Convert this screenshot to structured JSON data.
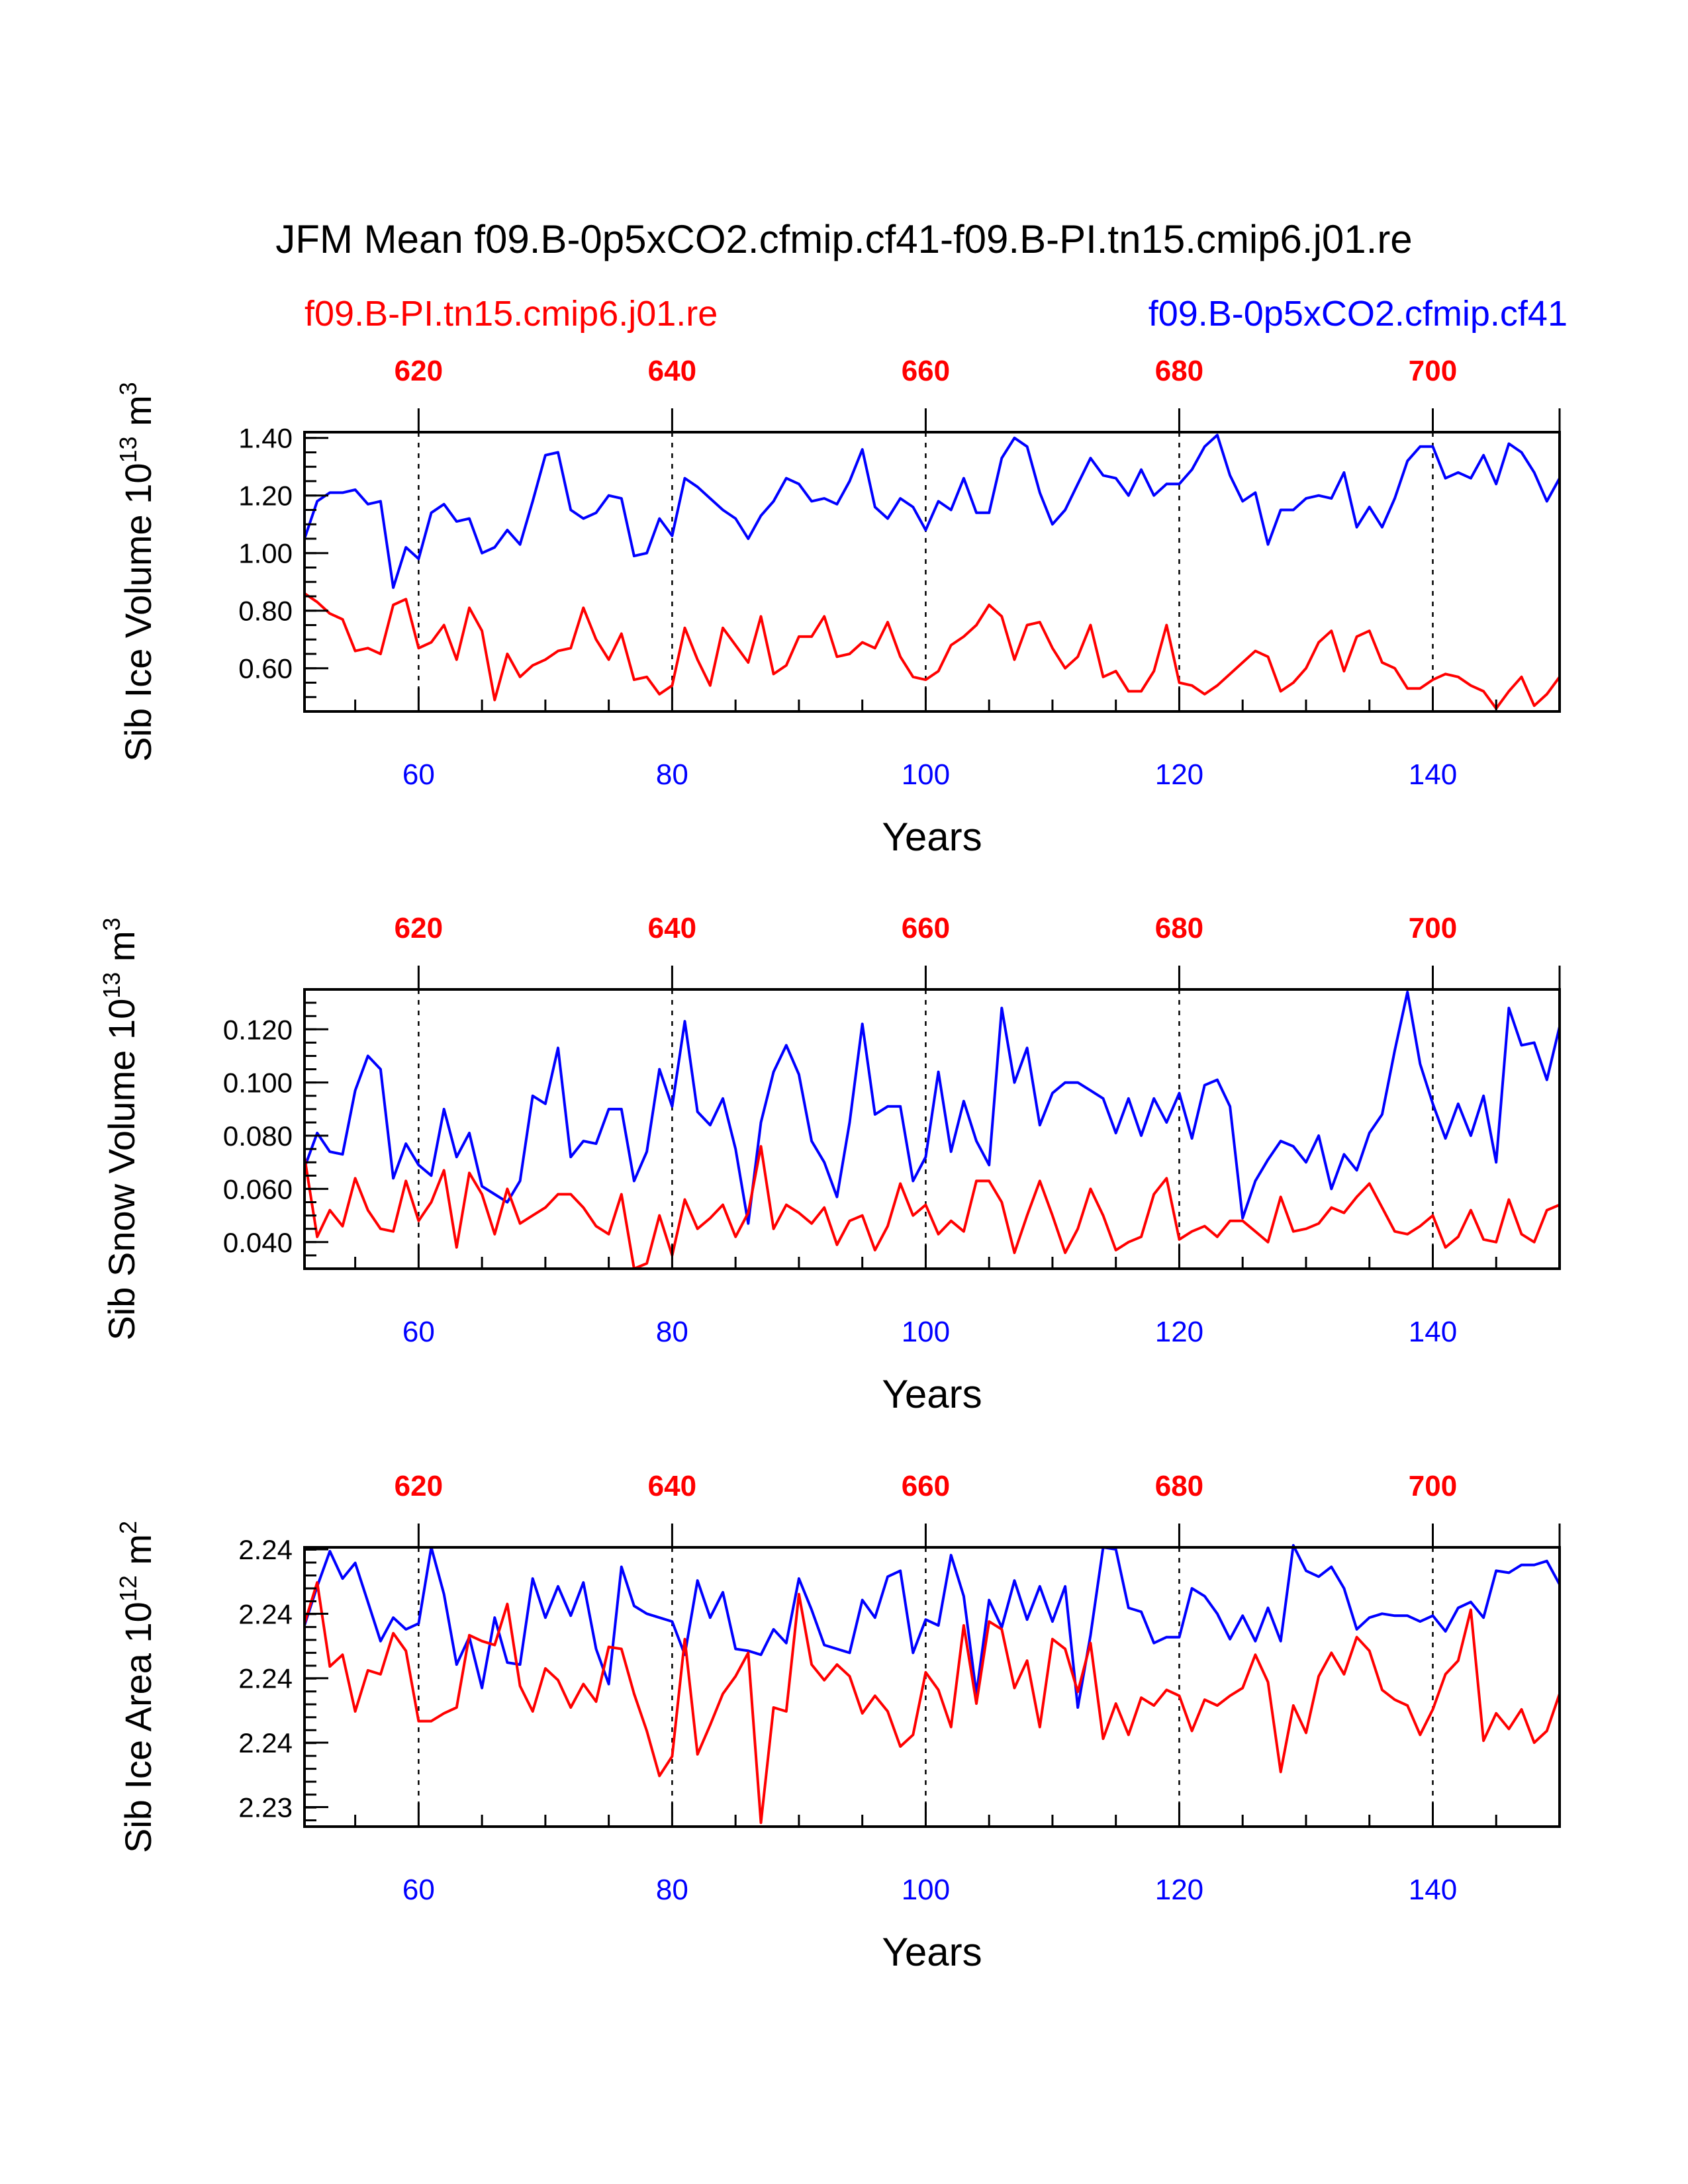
{
  "title": "JFM Mean f09.B-0p5xCO2.cfmip.cf41-f09.B-PI.tn15.cmip6.j01.re",
  "legend": {
    "red": "f09.B-PI.tn15.cmip6.j01.re",
    "blue": "f09.B-0p5xCO2.cfmip.cf41"
  },
  "colors": {
    "blue": "#0000ff",
    "red": "#ff0000",
    "axis": "#000000"
  },
  "chart_data": [
    {
      "type": "line",
      "title": "",
      "ylabel_main": "Sib Ice Volume 10",
      "ylabel_exp": "13",
      "ylabel_unit": " m",
      "ylabel_unit_exp": "3",
      "xlabel": "Years",
      "xlim": [
        51,
        150
      ],
      "ylim": [
        0.45,
        1.42
      ],
      "yticks": [
        0.6,
        0.8,
        1.0,
        1.2,
        1.4
      ],
      "ytick_labels": [
        "0.60",
        "0.80",
        "1.00",
        "1.20",
        "1.40"
      ],
      "yminor": 0.05,
      "xticks": [
        60,
        80,
        100,
        120,
        140
      ],
      "xtick_labels": [
        "60",
        "80",
        "100",
        "120",
        "140"
      ],
      "top_xticks": [
        60,
        80,
        100,
        120,
        140,
        150
      ],
      "top_xtick_labels": [
        "620",
        "640",
        "660",
        "680",
        "700"
      ],
      "vlines": [
        60,
        80,
        100,
        120,
        140
      ],
      "x_start": 51,
      "series": [
        {
          "name": "f09.B-0p5xCO2.cfmip.cf41",
          "color": "blue",
          "values": [
            1.05,
            1.18,
            1.21,
            1.21,
            1.22,
            1.17,
            1.18,
            0.88,
            1.02,
            0.98,
            1.14,
            1.17,
            1.11,
            1.12,
            1.0,
            1.02,
            1.08,
            1.03,
            1.18,
            1.34,
            1.35,
            1.15,
            1.12,
            1.14,
            1.2,
            1.19,
            0.99,
            1.0,
            1.12,
            1.06,
            1.26,
            1.23,
            1.19,
            1.15,
            1.12,
            1.05,
            1.13,
            1.18,
            1.26,
            1.24,
            1.18,
            1.19,
            1.17,
            1.25,
            1.36,
            1.16,
            1.12,
            1.19,
            1.16,
            1.08,
            1.18,
            1.15,
            1.26,
            1.14,
            1.14,
            1.33,
            1.4,
            1.37,
            1.21,
            1.1,
            1.15,
            1.24,
            1.33,
            1.27,
            1.26,
            1.2,
            1.29,
            1.2,
            1.24,
            1.24,
            1.29,
            1.37,
            1.41,
            1.27,
            1.18,
            1.21,
            1.03,
            1.15,
            1.15,
            1.19,
            1.2,
            1.19,
            1.28,
            1.09,
            1.16,
            1.09,
            1.19,
            1.32,
            1.37,
            1.37,
            1.26,
            1.28,
            1.26,
            1.34,
            1.24,
            1.38,
            1.35,
            1.28,
            1.18,
            1.26
          ]
        },
        {
          "name": "f09.B-PI.tn15.cmip6.j01.re",
          "color": "red",
          "values": [
            0.86,
            0.83,
            0.79,
            0.77,
            0.66,
            0.67,
            0.65,
            0.82,
            0.84,
            0.67,
            0.69,
            0.75,
            0.63,
            0.81,
            0.73,
            0.49,
            0.65,
            0.57,
            0.61,
            0.63,
            0.66,
            0.67,
            0.81,
            0.7,
            0.63,
            0.72,
            0.56,
            0.57,
            0.51,
            0.54,
            0.74,
            0.63,
            0.54,
            0.74,
            0.68,
            0.62,
            0.78,
            0.58,
            0.61,
            0.71,
            0.71,
            0.78,
            0.64,
            0.65,
            0.69,
            0.67,
            0.76,
            0.64,
            0.57,
            0.56,
            0.59,
            0.68,
            0.71,
            0.75,
            0.82,
            0.78,
            0.63,
            0.75,
            0.76,
            0.67,
            0.6,
            0.64,
            0.75,
            0.57,
            0.59,
            0.52,
            0.52,
            0.59,
            0.75,
            0.55,
            0.54,
            0.51,
            0.54,
            0.58,
            0.62,
            0.66,
            0.64,
            0.52,
            0.55,
            0.6,
            0.69,
            0.73,
            0.59,
            0.71,
            0.73,
            0.62,
            0.6,
            0.53,
            0.53,
            0.56,
            0.58,
            0.57,
            0.54,
            0.52,
            0.46,
            0.52,
            0.57,
            0.47,
            0.51,
            0.57
          ]
        }
      ]
    },
    {
      "type": "line",
      "title": "",
      "ylabel_main": "Sib Snow Volume 10",
      "ylabel_exp": "13",
      "ylabel_unit": " m",
      "ylabel_unit_exp": "3",
      "xlabel": "Years",
      "xlim": [
        51,
        150
      ],
      "ylim": [
        0.03,
        0.135
      ],
      "yticks": [
        0.04,
        0.06,
        0.08,
        0.1,
        0.12
      ],
      "ytick_labels": [
        "0.040",
        "0.060",
        "0.080",
        "0.100",
        "0.120"
      ],
      "yminor": 0.005,
      "xticks": [
        60,
        80,
        100,
        120,
        140
      ],
      "xtick_labels": [
        "60",
        "80",
        "100",
        "120",
        "140"
      ],
      "top_xticks": [
        60,
        80,
        100,
        120,
        140,
        150
      ],
      "top_xtick_labels": [
        "620",
        "640",
        "660",
        "680",
        "700"
      ],
      "vlines": [
        60,
        80,
        100,
        120,
        140
      ],
      "x_start": 51,
      "series": [
        {
          "name": "f09.B-0p5xCO2.cfmip.cf41",
          "color": "blue",
          "values": [
            0.068,
            0.081,
            0.074,
            0.073,
            0.097,
            0.11,
            0.105,
            0.064,
            0.077,
            0.069,
            0.065,
            0.09,
            0.072,
            0.081,
            0.061,
            0.058,
            0.055,
            0.063,
            0.095,
            0.092,
            0.113,
            0.072,
            0.078,
            0.077,
            0.09,
            0.09,
            0.063,
            0.074,
            0.105,
            0.091,
            0.123,
            0.089,
            0.084,
            0.094,
            0.075,
            0.047,
            0.085,
            0.104,
            0.114,
            0.103,
            0.078,
            0.07,
            0.057,
            0.085,
            0.122,
            0.088,
            0.091,
            0.091,
            0.063,
            0.072,
            0.104,
            0.074,
            0.093,
            0.078,
            0.069,
            0.128,
            0.1,
            0.113,
            0.084,
            0.096,
            0.1,
            0.1,
            0.097,
            0.094,
            0.081,
            0.094,
            0.08,
            0.094,
            0.085,
            0.096,
            0.079,
            0.099,
            0.101,
            0.091,
            0.049,
            0.063,
            0.071,
            0.078,
            0.076,
            0.07,
            0.08,
            0.06,
            0.073,
            0.067,
            0.081,
            0.088,
            0.112,
            0.134,
            0.107,
            0.092,
            0.079,
            0.092,
            0.08,
            0.095,
            0.07,
            0.128,
            0.114,
            0.115,
            0.101,
            0.121
          ]
        },
        {
          "name": "f09.B-PI.tn15.cmip6.j01.re",
          "color": "red",
          "values": [
            0.072,
            0.042,
            0.052,
            0.046,
            0.064,
            0.052,
            0.045,
            0.044,
            0.063,
            0.048,
            0.055,
            0.067,
            0.038,
            0.066,
            0.058,
            0.043,
            0.06,
            0.047,
            0.05,
            0.053,
            0.058,
            0.058,
            0.053,
            0.046,
            0.043,
            0.058,
            0.03,
            0.032,
            0.05,
            0.035,
            0.056,
            0.045,
            0.049,
            0.054,
            0.042,
            0.051,
            0.076,
            0.045,
            0.054,
            0.051,
            0.047,
            0.053,
            0.039,
            0.048,
            0.05,
            0.037,
            0.046,
            0.062,
            0.05,
            0.054,
            0.043,
            0.048,
            0.044,
            0.063,
            0.063,
            0.055,
            0.036,
            0.05,
            0.063,
            0.05,
            0.036,
            0.045,
            0.06,
            0.05,
            0.037,
            0.04,
            0.042,
            0.058,
            0.064,
            0.041,
            0.044,
            0.046,
            0.042,
            0.048,
            0.048,
            0.044,
            0.04,
            0.057,
            0.044,
            0.045,
            0.047,
            0.053,
            0.051,
            0.057,
            0.062,
            0.053,
            0.044,
            0.043,
            0.046,
            0.05,
            0.038,
            0.042,
            0.052,
            0.041,
            0.04,
            0.056,
            0.043,
            0.04,
            0.052,
            0.054
          ]
        }
      ]
    },
    {
      "type": "line",
      "title": "",
      "ylabel_main": "Sib Ice Area 10",
      "ylabel_exp": "12",
      "ylabel_unit": " m",
      "ylabel_unit_exp": "2",
      "xlabel": "Years",
      "xlim": [
        51,
        150
      ],
      "ylim": [
        2.2285,
        2.2428
      ],
      "yticks": [
        2.2295,
        2.2328,
        2.2361,
        2.2394,
        2.2427
      ],
      "ytick_labels": [
        "2.23",
        "2.24",
        "2.24",
        "2.24",
        "2.24"
      ],
      "yminor": 0.00066,
      "xticks": [
        60,
        80,
        100,
        120,
        140
      ],
      "xtick_labels": [
        "60",
        "80",
        "100",
        "120",
        "140"
      ],
      "top_xticks": [
        60,
        80,
        100,
        120,
        140,
        150
      ],
      "top_xtick_labels": [
        "620",
        "640",
        "660",
        "680",
        "700"
      ],
      "vlines": [
        60,
        80,
        100,
        120,
        140
      ],
      "x_start": 51,
      "series": [
        {
          "name": "f09.B-0p5xCO2.cfmip.cf41",
          "color": "blue",
          "values": [
            2.2388,
            2.2408,
            2.2426,
            2.2412,
            2.242,
            2.24,
            2.238,
            2.2392,
            2.2386,
            2.2389,
            2.2428,
            2.2404,
            2.2368,
            2.2382,
            2.2356,
            2.2392,
            2.2369,
            2.2368,
            2.2412,
            2.2392,
            2.2408,
            2.2393,
            2.241,
            2.2376,
            2.2358,
            2.2418,
            2.2398,
            2.2394,
            2.2392,
            2.239,
            2.2373,
            2.2411,
            2.2392,
            2.2405,
            2.2376,
            2.2375,
            2.2373,
            2.2386,
            2.2379,
            2.2412,
            2.2396,
            2.2378,
            2.2376,
            2.2374,
            2.2401,
            2.2392,
            2.2413,
            2.2416,
            2.2374,
            2.2391,
            2.2388,
            2.2424,
            2.2403,
            2.2353,
            2.2401,
            2.2387,
            2.2411,
            2.2391,
            2.2408,
            2.239,
            2.2408,
            2.2346,
            2.2383,
            2.2428,
            2.2427,
            2.2397,
            2.2395,
            2.2379,
            2.2382,
            2.2382,
            2.2407,
            2.2403,
            2.2394,
            2.2381,
            2.2393,
            2.238,
            2.2397,
            2.238,
            2.2429,
            2.2416,
            2.2413,
            2.2418,
            2.2407,
            2.2386,
            2.2392,
            2.2394,
            2.2393,
            2.2393,
            2.239,
            2.2393,
            2.2385,
            2.2397,
            2.24,
            2.2392,
            2.2416,
            2.2415,
            2.2419,
            2.2419,
            2.2421,
            2.2409
          ]
        },
        {
          "name": "f09.B-PI.tn15.cmip6.j01.re",
          "color": "red",
          "values": [
            2.2389,
            2.241,
            2.2367,
            2.2373,
            2.2344,
            2.2365,
            2.2363,
            2.2384,
            2.2375,
            2.2339,
            2.2339,
            2.2343,
            2.2346,
            2.2383,
            2.238,
            2.2378,
            2.2399,
            2.2357,
            2.2344,
            2.2366,
            2.236,
            2.2346,
            2.2358,
            2.2349,
            2.2377,
            2.2376,
            2.2353,
            2.2334,
            2.2311,
            2.2321,
            2.2381,
            2.2322,
            2.2337,
            2.2353,
            2.2362,
            2.2374,
            2.2287,
            2.2346,
            2.2344,
            2.2404,
            2.2368,
            2.236,
            2.2368,
            2.2362,
            2.2343,
            2.2352,
            2.2344,
            2.2326,
            2.2332,
            2.2364,
            2.2355,
            2.2336,
            2.2388,
            2.2348,
            2.239,
            2.2386,
            2.2356,
            2.237,
            2.2336,
            2.2381,
            2.2376,
            2.2354,
            2.2379,
            2.233,
            2.2348,
            2.2332,
            2.2351,
            2.2347,
            2.2355,
            2.2352,
            2.2334,
            2.235,
            2.2347,
            2.2352,
            2.2356,
            2.2373,
            2.2359,
            2.2313,
            2.2347,
            2.2333,
            2.2362,
            2.2374,
            2.2363,
            2.2382,
            2.2375,
            2.2355,
            2.235,
            2.2347,
            2.2332,
            2.2345,
            2.2363,
            2.237,
            2.2396,
            2.2329,
            2.2343,
            2.2335,
            2.2345,
            2.2328,
            2.2334,
            2.2353
          ]
        }
      ]
    }
  ]
}
